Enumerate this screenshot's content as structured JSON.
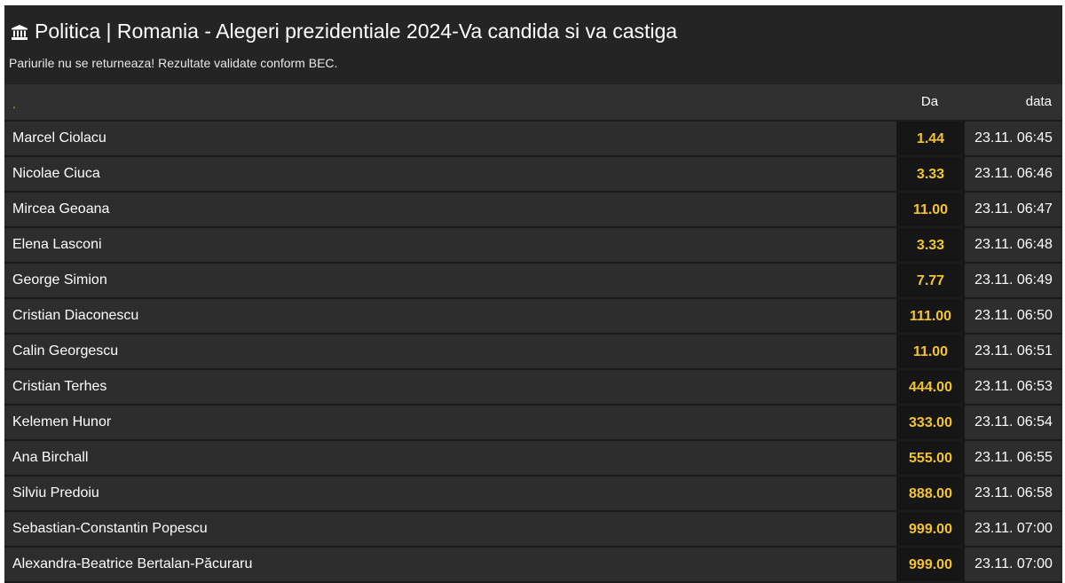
{
  "header": {
    "icon": "bank-icon",
    "title": "Politica | Romania - Alegeri prezidentiale 2024-Va candida si va castiga",
    "subtitle": "Pariurile nu se returneaza! Rezultate validate conform BEC."
  },
  "table": {
    "columns": {
      "name": ".",
      "odds": "Da",
      "date": "data"
    },
    "rows": [
      {
        "name": "Marcel Ciolacu",
        "odds": "1.44",
        "date": "23.11. 06:45"
      },
      {
        "name": "Nicolae Ciuca",
        "odds": "3.33",
        "date": "23.11. 06:46"
      },
      {
        "name": "Mircea Geoana",
        "odds": "11.00",
        "date": "23.11. 06:47"
      },
      {
        "name": "Elena Lasconi",
        "odds": "3.33",
        "date": "23.11. 06:48"
      },
      {
        "name": "George Simion",
        "odds": "7.77",
        "date": "23.11. 06:49"
      },
      {
        "name": "Cristian Diaconescu",
        "odds": "111.00",
        "date": "23.11. 06:50"
      },
      {
        "name": "Calin Georgescu",
        "odds": "11.00",
        "date": "23.11. 06:51"
      },
      {
        "name": "Cristian Terhes",
        "odds": "444.00",
        "date": "23.11. 06:53"
      },
      {
        "name": "Kelemen Hunor",
        "odds": "333.00",
        "date": "23.11. 06:54"
      },
      {
        "name": "Ana Birchall",
        "odds": "555.00",
        "date": "23.11. 06:55"
      },
      {
        "name": "Silviu Predoiu",
        "odds": "888.00",
        "date": "23.11. 06:58"
      },
      {
        "name": "Sebastian-Constantin Popescu",
        "odds": "999.00",
        "date": "23.11. 07:00"
      },
      {
        "name": "Alexandra-Beatrice Bertalan-Păcuraru",
        "odds": "999.00",
        "date": "23.11. 07:00"
      }
    ]
  },
  "colors": {
    "background": "#242424",
    "row": "#2d2d2d",
    "odds_cell": "#161616",
    "odds_text": "#f4c430"
  }
}
